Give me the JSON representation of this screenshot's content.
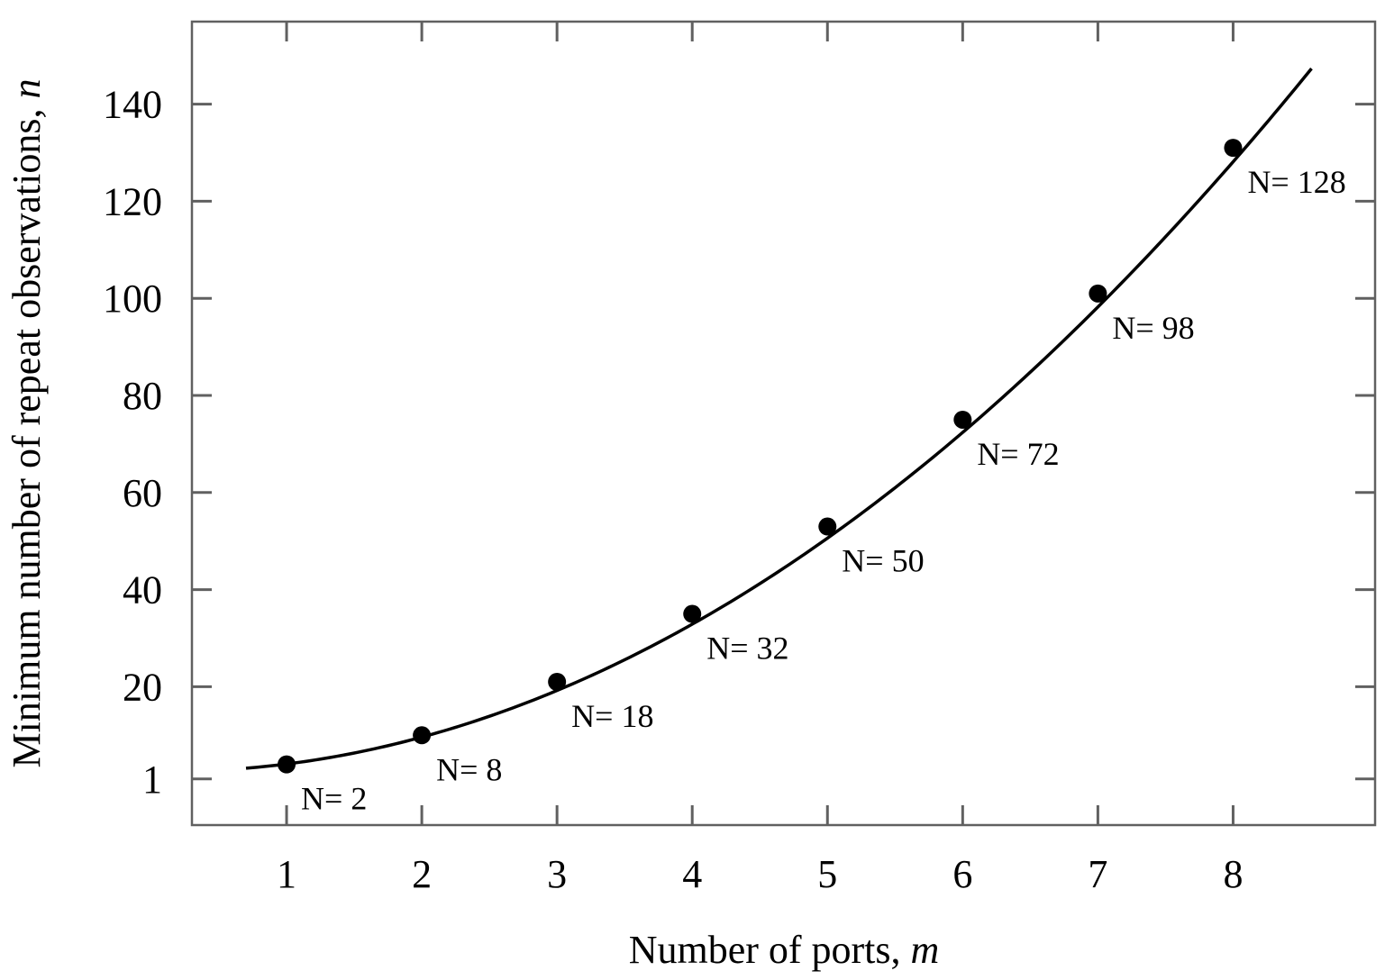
{
  "chart_data": {
    "type": "line",
    "xlabel": "Number of ports, ",
    "xlabel_var": "m",
    "ylabel": "Minimum number of repeat observations, ",
    "ylabel_var": "n",
    "xlim": [
      0.3,
      9.05
    ],
    "ylim": [
      -8.5,
      157
    ],
    "x_ticks": [
      1,
      2,
      3,
      4,
      5,
      6,
      7,
      8
    ],
    "x_tick_labels": [
      "1",
      "2",
      "3",
      "4",
      "5",
      "6",
      "7",
      "8"
    ],
    "y_ticks": [
      1,
      20,
      40,
      60,
      80,
      100,
      120,
      140
    ],
    "y_tick_labels": [
      "1",
      "20",
      "40",
      "60",
      "80",
      "100",
      "120",
      "140"
    ],
    "grid": false,
    "series": [
      {
        "x": [
          1,
          2,
          3,
          4,
          5,
          6,
          7,
          8
        ],
        "y": [
          4,
          10,
          21,
          35,
          53,
          75,
          101,
          131
        ],
        "point_labels": [
          "N= 2",
          "N= 8",
          "N= 18",
          "N= 32",
          "N= 50",
          "N= 72",
          "N= 98",
          "N= 128"
        ]
      }
    ],
    "fit_curve": {
      "x_range": [
        0.7,
        8.58
      ],
      "coefficients": [
        2.6,
        -0.55,
        2.03
      ]
    },
    "colors": {
      "axis": "#606060",
      "curve": "#000000",
      "marker": "#000000"
    }
  }
}
